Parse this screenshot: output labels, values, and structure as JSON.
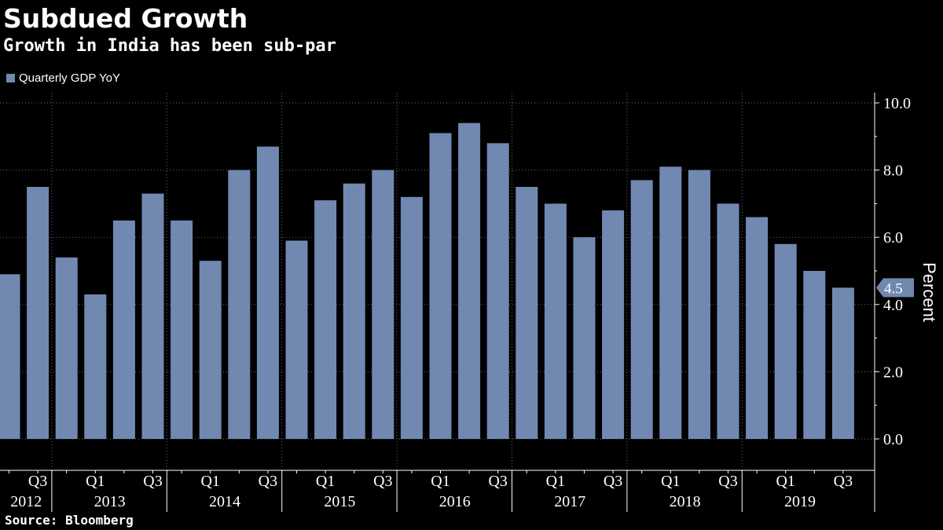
{
  "chart_data": {
    "type": "bar",
    "title": "Subdued Growth",
    "subtitle": "Growth in India has been sub-par",
    "source": "Source: Bloomberg",
    "series": [
      {
        "name": "Quarterly GDP YoY",
        "color": "#7189b1",
        "values": [
          4.9,
          7.5,
          5.4,
          4.3,
          6.5,
          7.3,
          6.5,
          5.3,
          8.0,
          8.7,
          5.9,
          7.1,
          7.6,
          8.0,
          7.2,
          9.1,
          9.4,
          8.8,
          7.5,
          7.0,
          6.0,
          6.8,
          7.7,
          8.1,
          8.0,
          7.0,
          6.6,
          5.8,
          5.0,
          4.5
        ]
      }
    ],
    "quarter_labels": [
      "",
      "Q3",
      "",
      "Q1",
      "",
      "Q3",
      "",
      "Q1",
      "",
      "Q3",
      "",
      "Q1",
      "",
      "Q3",
      "",
      "Q1",
      "",
      "Q3",
      "",
      "Q1",
      "",
      "Q3",
      "",
      "Q1",
      "",
      "Q3",
      "",
      "Q1",
      "",
      "Q3"
    ],
    "years": [
      {
        "label": "2012",
        "start": 0,
        "end": 2
      },
      {
        "label": "2013",
        "start": 2,
        "end": 6
      },
      {
        "label": "2014",
        "start": 6,
        "end": 10
      },
      {
        "label": "2015",
        "start": 10,
        "end": 14
      },
      {
        "label": "2016",
        "start": 14,
        "end": 18
      },
      {
        "label": "2017",
        "start": 18,
        "end": 22
      },
      {
        "label": "2018",
        "start": 22,
        "end": 26
      },
      {
        "label": "2019",
        "start": 26,
        "end": 30
      }
    ],
    "ylabel": "Percent",
    "ylim": [
      -0.9,
      10.2
    ],
    "yticks": [
      0.0,
      2.0,
      4.0,
      6.0,
      8.0,
      10.0
    ],
    "ytick_labels": [
      "0.0",
      "2.0",
      "4.0",
      "6.0",
      "8.0",
      "10.0"
    ],
    "last_value_label": "4.5",
    "grid": true
  }
}
